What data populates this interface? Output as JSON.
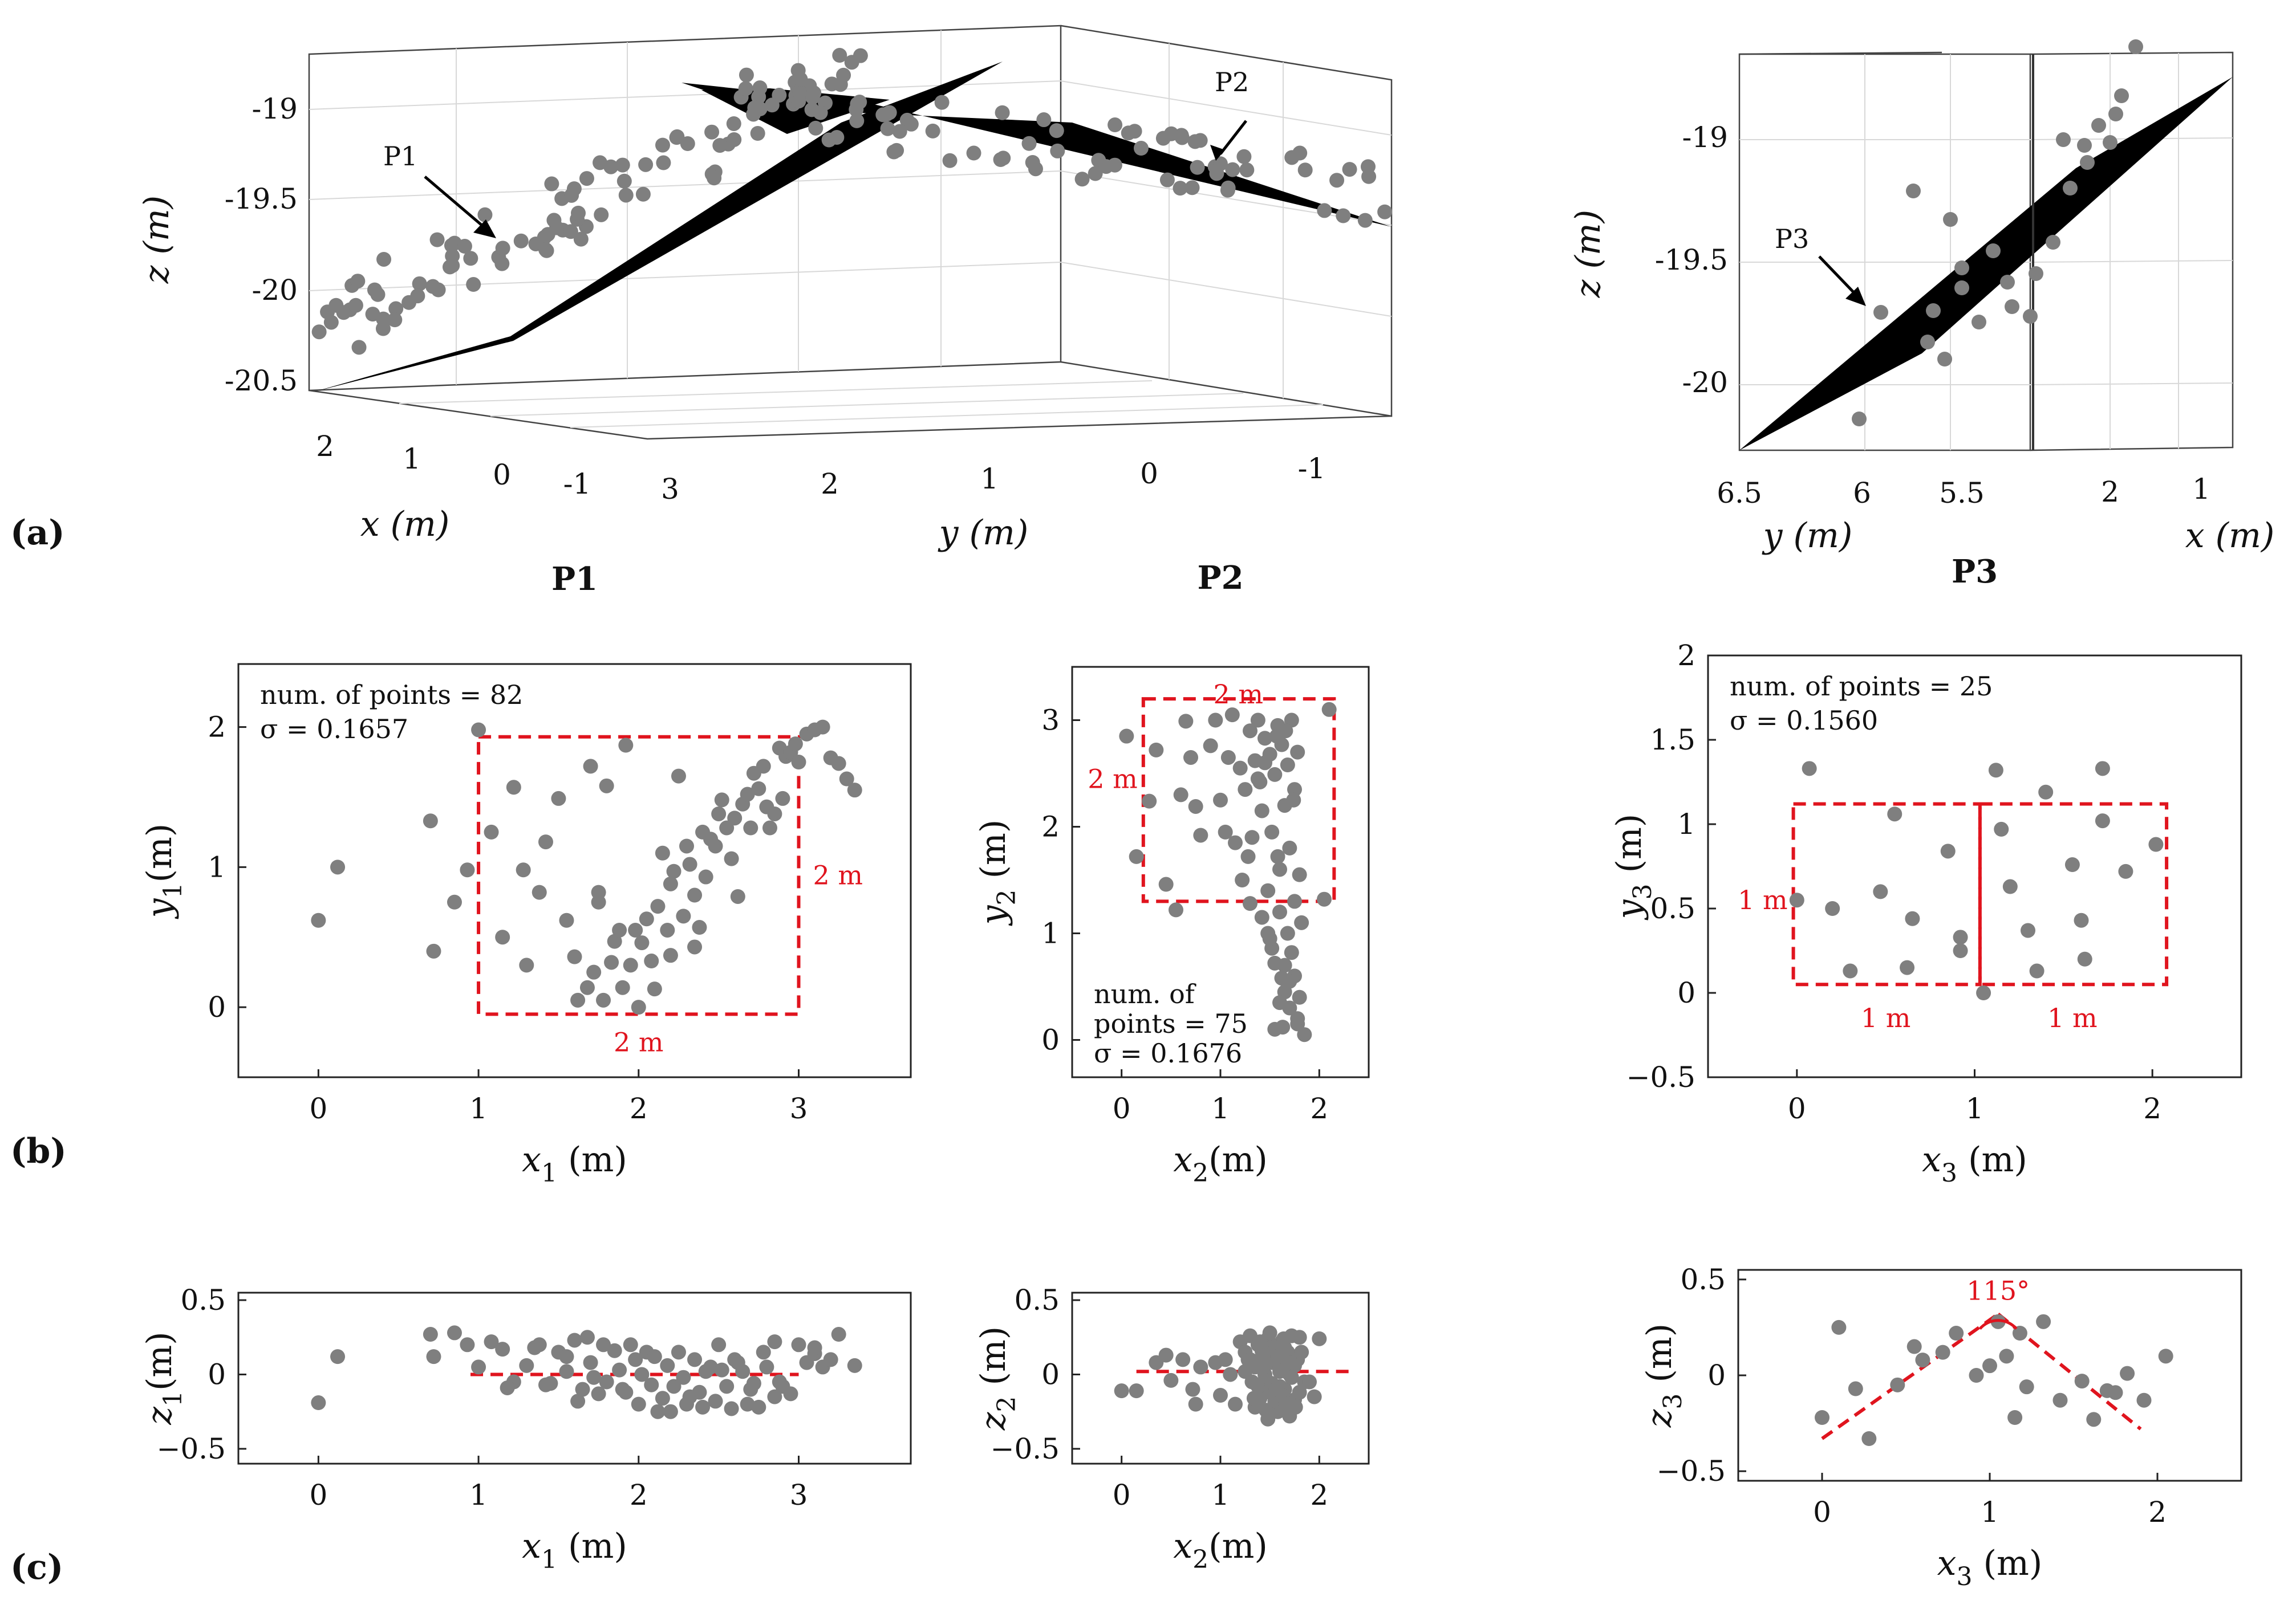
{
  "panel_labels": {
    "a": "(a)",
    "b": "(b)",
    "c": "(c)"
  },
  "chart_data": [
    {
      "id": "a-left",
      "type": "scatter3d",
      "zlabel": "z (m)",
      "xlabel": "x (m)",
      "ylabel": "y (m)",
      "zticks": [
        "-19",
        "-19.5",
        "-20",
        "-20.5"
      ],
      "xticks": [
        "2",
        "1",
        "0",
        "-1"
      ],
      "yticks": [
        "3",
        "2",
        "1",
        "0",
        "-1"
      ],
      "plane_labels": [
        "P1",
        "P2"
      ]
    },
    {
      "id": "a-right",
      "type": "scatter3d",
      "zlabel": "z (m)",
      "xlabel": "x (m)",
      "ylabel": "y (m)",
      "zticks": [
        "-19",
        "-19.5",
        "-20"
      ],
      "yticks": [
        "6.5",
        "6",
        "5.5"
      ],
      "xticks": [
        "2",
        "1"
      ],
      "plane_labels": [
        "P3"
      ]
    },
    {
      "id": "b1",
      "type": "scatter",
      "title": "P1",
      "xlabel": "x",
      "xsub": "1",
      "xunit": " (m)",
      "ylabel": "y",
      "ysub": "1",
      "yunit": "(m)",
      "xlim": [
        -0.5,
        3.7
      ],
      "ylim": [
        -0.5,
        2.45
      ],
      "xticks": [
        0,
        1,
        2,
        3
      ],
      "yticks": [
        0,
        1,
        2
      ],
      "annotation": [
        "num. of points = 82",
        "σ = 0.1657"
      ],
      "boxes": [
        [
          1,
          -0.05,
          3,
          1.93
        ]
      ],
      "dims": [
        "2 m",
        "2 m"
      ],
      "x": [
        0.0,
        0.12,
        0.7,
        0.72,
        0.85,
        0.93,
        1.0,
        1.08,
        1.15,
        1.22,
        1.3,
        1.28,
        1.38,
        1.42,
        1.5,
        1.55,
        1.6,
        1.62,
        1.68,
        1.7,
        1.72,
        1.75,
        1.78,
        1.8,
        1.83,
        1.85,
        1.88,
        1.9,
        1.92,
        1.95,
        1.98,
        2.0,
        2.02,
        2.05,
        2.08,
        2.1,
        2.12,
        2.15,
        2.18,
        2.2,
        2.22,
        2.25,
        2.28,
        2.3,
        2.32,
        2.35,
        2.38,
        2.4,
        2.42,
        2.45,
        2.48,
        2.5,
        2.52,
        2.55,
        2.58,
        2.6,
        2.62,
        2.65,
        2.68,
        2.7,
        2.72,
        2.75,
        2.78,
        2.8,
        2.82,
        2.85,
        2.88,
        2.9,
        2.92,
        2.95,
        2.98,
        3.0,
        3.05,
        3.1,
        3.15,
        3.2,
        3.25,
        3.3,
        3.35,
        2.35,
        1.75,
        2.2
      ],
      "y": [
        0.62,
        1.0,
        1.33,
        0.4,
        0.75,
        0.98,
        1.98,
        1.25,
        0.5,
        1.57,
        0.3,
        0.98,
        0.82,
        1.18,
        1.49,
        0.62,
        0.36,
        0.05,
        0.14,
        1.72,
        0.25,
        0.75,
        0.05,
        1.58,
        0.32,
        0.47,
        0.55,
        0.14,
        1.87,
        0.3,
        0.55,
        0.0,
        0.46,
        0.63,
        0.33,
        0.13,
        0.72,
        1.1,
        0.55,
        0.88,
        0.97,
        1.65,
        0.65,
        1.15,
        1.02,
        0.8,
        0.57,
        1.25,
        0.93,
        1.2,
        1.15,
        1.38,
        1.48,
        1.28,
        1.06,
        1.35,
        0.79,
        1.45,
        1.52,
        1.28,
        1.67,
        1.56,
        1.72,
        1.43,
        1.28,
        1.38,
        1.85,
        1.49,
        1.79,
        1.82,
        1.88,
        1.75,
        1.95,
        1.98,
        2.0,
        1.78,
        1.74,
        1.63,
        1.55,
        0.43,
        0.82,
        0.37
      ]
    },
    {
      "id": "b2",
      "type": "scatter",
      "title": "P2",
      "xlabel": "x",
      "xsub": "2",
      "xunit": "(m)",
      "ylabel": "y",
      "ysub": "2",
      "yunit": " (m)",
      "xlim": [
        -0.5,
        2.5
      ],
      "ylim": [
        -0.35,
        3.5
      ],
      "xticks": [
        0,
        1,
        2
      ],
      "yticks": [
        0,
        1,
        2,
        3
      ],
      "annotation": [
        "num. of",
        "points = 75",
        "σ = 0.1676"
      ],
      "boxes": [
        [
          0.22,
          1.3,
          2.15,
          3.2
        ]
      ],
      "dims": [
        "2 m",
        "2 m"
      ],
      "x": [
        0.05,
        0.15,
        0.28,
        0.35,
        0.45,
        0.55,
        0.6,
        0.65,
        0.7,
        0.75,
        0.8,
        0.9,
        0.95,
        1.0,
        1.05,
        1.08,
        1.12,
        1.15,
        1.2,
        1.22,
        1.25,
        1.28,
        1.3,
        1.32,
        1.35,
        1.38,
        1.4,
        1.42,
        1.45,
        1.48,
        1.5,
        1.52,
        1.55,
        1.58,
        1.6,
        1.62,
        1.65,
        1.68,
        1.7,
        1.72,
        1.75,
        1.78,
        1.8,
        2.05,
        2.1,
        1.42,
        1.48,
        1.52,
        1.55,
        1.6,
        1.62,
        1.65,
        1.68,
        1.7,
        1.72,
        1.75,
        1.78,
        1.8,
        1.82,
        1.85,
        1.5,
        1.55,
        1.6,
        1.65,
        1.7,
        1.75,
        1.78,
        1.63,
        1.57,
        1.45,
        1.38,
        1.3,
        1.58,
        1.66,
        1.74
      ],
      "y": [
        2.85,
        1.72,
        2.24,
        2.72,
        1.46,
        1.22,
        2.3,
        2.99,
        2.65,
        2.19,
        1.92,
        2.76,
        3.0,
        2.25,
        1.95,
        2.65,
        3.05,
        1.85,
        2.55,
        1.5,
        2.35,
        1.72,
        2.9,
        1.9,
        2.62,
        3.0,
        2.42,
        2.15,
        2.83,
        1.4,
        2.68,
        1.95,
        2.49,
        2.95,
        1.6,
        2.77,
        2.2,
        2.58,
        1.8,
        3.0,
        2.35,
        2.7,
        1.55,
        1.32,
        3.1,
        1.15,
        1.0,
        0.86,
        0.72,
        1.2,
        0.58,
        0.45,
        1.0,
        0.3,
        0.82,
        0.6,
        0.15,
        0.4,
        1.1,
        0.05,
        0.95,
        0.1,
        0.35,
        0.7,
        0.55,
        1.3,
        0.2,
        0.12,
        2.85,
        2.6,
        2.45,
        1.28,
        1.72,
        2.9,
        2.25
      ]
    },
    {
      "id": "b3",
      "type": "scatter",
      "title": "P3",
      "xlabel": "x",
      "xsub": "3",
      "xunit": " (m)",
      "ylabel": "y",
      "ysub": "3",
      "yunit": " (m)",
      "xlim": [
        -0.5,
        2.5
      ],
      "ylim": [
        -0.5,
        2.0
      ],
      "xticks": [
        0,
        1,
        2
      ],
      "yticks": [
        -0.5,
        0,
        0.5,
        1,
        1.5,
        2
      ],
      "annotation": [
        "num. of points = 25",
        "σ = 0.1560"
      ],
      "boxes": [
        [
          -0.02,
          0.05,
          1.03,
          1.12
        ],
        [
          1.03,
          0.05,
          2.08,
          1.12
        ]
      ],
      "dims": [
        "1 m",
        "1 m",
        "1 m"
      ],
      "x": [
        0.0,
        0.07,
        0.2,
        0.3,
        0.47,
        0.55,
        0.62,
        0.65,
        0.85,
        0.92,
        1.05,
        1.12,
        1.15,
        1.2,
        1.35,
        1.4,
        1.55,
        1.62,
        1.72,
        1.85,
        2.02,
        0.92,
        1.6,
        1.72,
        1.3
      ],
      "y": [
        0.55,
        1.33,
        0.5,
        0.13,
        0.6,
        1.06,
        0.15,
        0.44,
        0.84,
        0.25,
        0.0,
        1.32,
        0.97,
        0.63,
        0.13,
        1.19,
        0.76,
        0.2,
        1.33,
        0.72,
        0.88,
        0.33,
        0.43,
        1.02,
        0.37
      ]
    },
    {
      "id": "c1",
      "type": "scatter",
      "xlabel": "x",
      "xsub": "1",
      "xunit": " (m)",
      "ylabel": "z",
      "ysub": "1",
      "yunit": "(m)",
      "xlim": [
        -0.5,
        3.7
      ],
      "ylim": [
        -0.6,
        0.55
      ],
      "xticks": [
        0,
        1,
        2,
        3
      ],
      "yticks": [
        -0.5,
        0,
        0.5
      ],
      "line": [
        [
          0.95,
          0.0
        ],
        [
          3.0,
          0.0
        ]
      ],
      "x": [
        0.0,
        0.12,
        0.7,
        0.72,
        0.85,
        0.93,
        1.0,
        1.08,
        1.15,
        1.22,
        1.3,
        1.38,
        1.42,
        1.5,
        1.55,
        1.6,
        1.62,
        1.68,
        1.7,
        1.75,
        1.78,
        1.8,
        1.85,
        1.88,
        1.9,
        1.95,
        1.98,
        2.0,
        2.05,
        2.08,
        2.1,
        2.15,
        2.18,
        2.2,
        2.25,
        2.28,
        2.3,
        2.35,
        2.38,
        2.4,
        2.45,
        2.48,
        2.5,
        2.55,
        2.58,
        2.6,
        2.65,
        2.68,
        2.7,
        2.75,
        2.78,
        2.8,
        2.85,
        2.88,
        2.9,
        2.95,
        3.0,
        3.05,
        3.1,
        3.15,
        3.2,
        3.25,
        3.35,
        1.65,
        1.92,
        2.22,
        2.52,
        2.72,
        2.12,
        2.42,
        1.55,
        1.35,
        1.18,
        2.62,
        2.32,
        1.72,
        2.02,
        1.45,
        2.85,
        3.1
      ],
      "y": [
        -0.19,
        0.12,
        0.27,
        0.12,
        0.28,
        0.2,
        0.05,
        0.22,
        0.17,
        -0.05,
        0.06,
        0.2,
        -0.07,
        0.15,
        0.02,
        0.23,
        -0.18,
        0.25,
        0.08,
        -0.13,
        0.2,
        -0.05,
        0.16,
        0.03,
        -0.1,
        0.2,
        0.1,
        -0.2,
        0.15,
        -0.07,
        0.12,
        -0.16,
        0.06,
        -0.25,
        0.15,
        -0.02,
        -0.2,
        0.1,
        -0.12,
        -0.22,
        0.05,
        -0.18,
        0.2,
        -0.08,
        -0.23,
        0.1,
        0.02,
        -0.2,
        -0.1,
        -0.22,
        0.15,
        0.05,
        -0.15,
        -0.05,
        -0.08,
        -0.13,
        0.2,
        0.08,
        0.14,
        0.05,
        0.1,
        0.27,
        0.06,
        -0.1,
        -0.12,
        -0.08,
        0.03,
        -0.06,
        -0.25,
        0.02,
        0.12,
        0.18,
        -0.09,
        0.08,
        -0.15,
        -0.02,
        0.0,
        -0.06,
        0.22,
        0.18
      ]
    },
    {
      "id": "c2",
      "type": "scatter",
      "xlabel": "x",
      "xsub": "2",
      "xunit": "(m)",
      "ylabel": "z",
      "ysub": "2",
      "yunit": " (m)",
      "xlim": [
        -0.5,
        2.5
      ],
      "ylim": [
        -0.6,
        0.55
      ],
      "xticks": [
        0,
        1,
        2
      ],
      "yticks": [
        -0.5,
        0,
        0.5
      ],
      "line": [
        [
          0.15,
          0.02
        ],
        [
          2.35,
          0.02
        ]
      ],
      "x": [
        0.0,
        0.15,
        0.35,
        0.45,
        0.5,
        0.62,
        0.72,
        0.75,
        0.8,
        0.95,
        1.0,
        1.05,
        1.1,
        1.15,
        1.2,
        1.25,
        1.28,
        1.3,
        1.32,
        1.35,
        1.38,
        1.4,
        1.42,
        1.45,
        1.48,
        1.5,
        1.52,
        1.55,
        1.58,
        1.6,
        1.62,
        1.65,
        1.68,
        1.7,
        1.72,
        1.75,
        1.78,
        1.8,
        1.85,
        1.95,
        2.0,
        1.35,
        1.42,
        1.48,
        1.55,
        1.6,
        1.65,
        1.7,
        1.75,
        1.8,
        1.4,
        1.45,
        1.5,
        1.55,
        1.6,
        1.65,
        1.7,
        1.3,
        1.25,
        1.38,
        1.62,
        1.68,
        1.72,
        1.5,
        1.58,
        1.46,
        1.52,
        1.64,
        1.76,
        1.34,
        1.42,
        1.56,
        1.66,
        1.82,
        1.9
      ],
      "y": [
        -0.11,
        -0.11,
        0.08,
        0.13,
        -0.04,
        0.1,
        -0.1,
        -0.2,
        0.05,
        0.08,
        -0.14,
        0.1,
        0.0,
        -0.2,
        0.22,
        0.15,
        0.1,
        0.26,
        -0.05,
        0.05,
        0.2,
        -0.16,
        0.12,
        0.0,
        0.24,
        -0.12,
        0.08,
        0.19,
        -0.25,
        0.05,
        0.22,
        -0.1,
        0.15,
        0.0,
        0.26,
        -0.17,
        0.1,
        0.25,
        -0.05,
        -0.15,
        0.24,
        -0.22,
        0.05,
        -0.3,
        0.18,
        -0.08,
        0.1,
        -0.2,
        0.06,
        -0.12,
        0.22,
        -0.04,
        0.14,
        -0.18,
        0.02,
        0.18,
        -0.28,
        0.1,
        0.02,
        -0.08,
        -0.14,
        0.08,
        -0.02,
        0.28,
        0.12,
        -0.24,
        -0.06,
        0.24,
        -0.22,
        -0.16,
        0.16,
        -0.1,
        -0.2,
        0.15,
        -0.05
      ]
    },
    {
      "id": "c3",
      "type": "scatter",
      "xlabel": "x",
      "xsub": "3",
      "xunit": " (m)",
      "ylabel": "z",
      "ysub": "3",
      "yunit": " (m)",
      "xlim": [
        -0.5,
        2.5
      ],
      "ylim": [
        -0.55,
        0.55
      ],
      "xticks": [
        0,
        1,
        2
      ],
      "yticks": [
        -0.5,
        0,
        0.5
      ],
      "angle_label": "115°",
      "vlines": [
        [
          [
            0.0,
            -0.33
          ],
          [
            1.05,
            0.32
          ]
        ],
        [
          [
            1.05,
            0.32
          ],
          [
            1.9,
            -0.28
          ]
        ]
      ],
      "x": [
        0.0,
        0.1,
        0.2,
        0.28,
        0.45,
        0.55,
        0.6,
        0.72,
        0.8,
        0.92,
        1.0,
        1.05,
        1.1,
        1.15,
        1.18,
        1.22,
        1.32,
        1.42,
        1.55,
        1.62,
        1.7,
        1.75,
        1.82,
        1.92,
        2.05
      ],
      "y": [
        -0.22,
        0.25,
        -0.07,
        -0.33,
        -0.05,
        0.15,
        0.08,
        0.12,
        0.22,
        0.0,
        0.05,
        0.28,
        0.1,
        -0.22,
        0.22,
        -0.06,
        0.28,
        -0.13,
        -0.03,
        -0.23,
        -0.08,
        -0.09,
        0.01,
        -0.13,
        0.1
      ]
    }
  ]
}
